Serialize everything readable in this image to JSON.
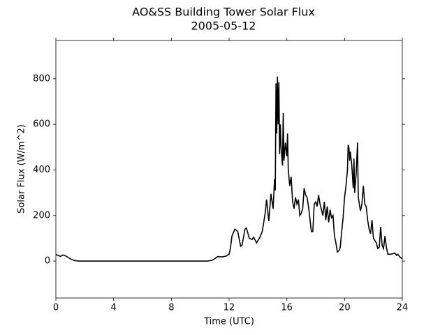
{
  "chart_data": {
    "type": "line",
    "title": "AO&SS Building Tower Solar Flux",
    "subtitle": "2005-05-12",
    "x_label": "Time (UTC)",
    "y_label": "Solar Flux (W/m^2)",
    "xlim": [
      0,
      24
    ],
    "xticks": [
      0,
      4,
      8,
      12,
      16,
      20,
      24
    ],
    "ylim": [
      -162,
      968
    ],
    "yticks": [
      0,
      200,
      400,
      600,
      800
    ],
    "series": [
      {
        "color": "#000000",
        "x": [
          0,
          0.2,
          0.3,
          0.5,
          0.7,
          1.0,
          1.3,
          1.6,
          5,
          10.5,
          10.8,
          11.0,
          11.2,
          11.5,
          11.8,
          12.0,
          12.1,
          12.2,
          12.4,
          12.6,
          12.8,
          12.9,
          13.1,
          13.2,
          13.4,
          13.6,
          13.7,
          13.9,
          14.1,
          14.3,
          14.5,
          14.6,
          14.75,
          14.9,
          15.05,
          15.15,
          15.2,
          15.25,
          15.3,
          15.35,
          15.4,
          15.45,
          15.5,
          15.55,
          15.6,
          15.7,
          15.75,
          15.8,
          15.9,
          16.0,
          16.05,
          16.1,
          16.2,
          16.3,
          16.4,
          16.5,
          16.6,
          16.7,
          16.8,
          16.9,
          17.0,
          17.1,
          17.2,
          17.3,
          17.4,
          17.5,
          17.7,
          17.8,
          17.9,
          18.0,
          18.1,
          18.2,
          18.3,
          18.5,
          18.6,
          18.7,
          18.8,
          18.9,
          19.0,
          19.1,
          19.2,
          19.3,
          19.4,
          19.5,
          19.6,
          19.7,
          19.8,
          19.9,
          20.0,
          20.1,
          20.2,
          20.25,
          20.3,
          20.35,
          20.4,
          20.5,
          20.6,
          20.65,
          20.7,
          20.8,
          20.9,
          20.95,
          21.1,
          21.2,
          21.3,
          21.4,
          21.5,
          21.6,
          21.7,
          21.8,
          21.9,
          22.0,
          22.1,
          22.2,
          22.3,
          22.4,
          22.5,
          22.6,
          22.7,
          22.8,
          22.9,
          23.0,
          23.2,
          23.5,
          23.6,
          23.7,
          23.8,
          24
        ],
        "values": [
          28,
          25,
          20,
          27,
          22,
          10,
          2,
          0,
          0,
          0,
          3,
          10,
          20,
          18,
          22,
          30,
          60,
          110,
          140,
          130,
          65,
          70,
          140,
          145,
          100,
          95,
          105,
          80,
          100,
          130,
          210,
          270,
          175,
          295,
          230,
          360,
          310,
          780,
          560,
          810,
          600,
          785,
          470,
          600,
          500,
          420,
          650,
          440,
          520,
          460,
          560,
          400,
          330,
          370,
          260,
          230,
          280,
          250,
          270,
          200,
          210,
          230,
          320,
          290,
          280,
          240,
          130,
          130,
          250,
          260,
          240,
          290,
          250,
          200,
          260,
          180,
          240,
          170,
          225,
          190,
          200,
          110,
          80,
          40,
          45,
          60,
          130,
          190,
          280,
          330,
          400,
          510,
          500,
          440,
          480,
          420,
          320,
          450,
          300,
          380,
          520,
          280,
          220,
          250,
          330,
          250,
          240,
          180,
          140,
          120,
          180,
          100,
          90,
          80,
          55,
          60,
          150,
          70,
          55,
          110,
          60,
          30,
          30,
          35,
          25,
          30,
          20,
          10
        ]
      }
    ]
  }
}
